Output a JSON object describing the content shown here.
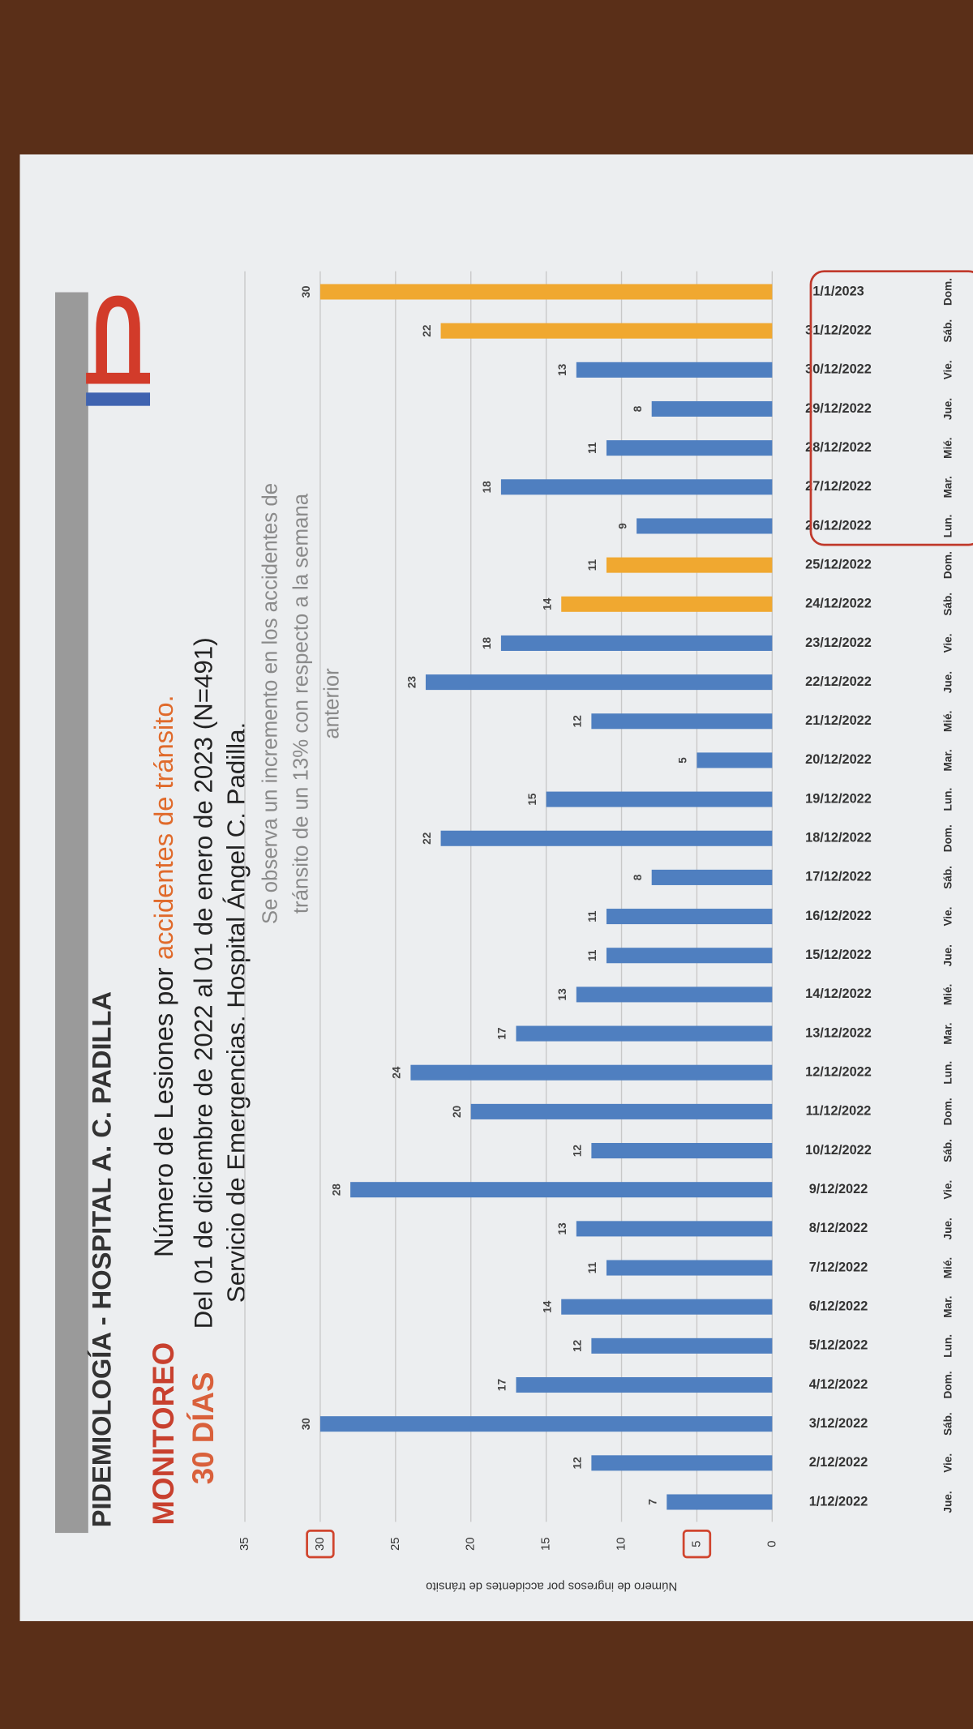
{
  "chart_data": {
    "type": "bar",
    "brand": "PIDEMIOLOGÍA - HOSPITAL A. C. PADILLA",
    "label_monitoring": "MONITOREO",
    "label_days": "30 DÍAS",
    "title_parts": [
      "Número de Lesiones por",
      "accidentes de tránsito."
    ],
    "subtitle": [
      "Del 01 de diciembre de 2022 al 01 de enero de 2023 (N=491)",
      "Servicio de Emergencias. Hospital Ángel C. Padilla."
    ],
    "annotation": [
      "Se observa un incremento en los accidentes de",
      "tránsito de un 13% con respecto a la semana",
      "anterior"
    ],
    "y_label": "Número de ingresos por accidentes de tránsito",
    "categories": [
      "1/12/2022",
      "2/12/2022",
      "3/12/2022",
      "4/12/2022",
      "5/12/2022",
      "6/12/2022",
      "7/12/2022",
      "8/12/2022",
      "9/12/2022",
      "10/12/2022",
      "11/12/2022",
      "12/12/2022",
      "13/12/2022",
      "14/12/2022",
      "15/12/2022",
      "16/12/2022",
      "17/12/2022",
      "18/12/2022",
      "19/12/2022",
      "20/12/2022",
      "21/12/2022",
      "22/12/2022",
      "23/12/2022",
      "24/12/2022",
      "25/12/2022",
      "26/12/2022",
      "27/12/2022",
      "28/12/2022",
      "29/12/2022",
      "30/12/2022",
      "31/12/2022",
      "1/1/2023"
    ],
    "weekdays": [
      "Jue.",
      "Vie.",
      "Sáb.",
      "Dom.",
      "Lun.",
      "Mar.",
      "Mié.",
      "Jue.",
      "Vie.",
      "Sáb.",
      "Dom.",
      "Lun.",
      "Mar.",
      "Mié.",
      "Jue.",
      "Vie.",
      "Sáb.",
      "Dom.",
      "Lun.",
      "Mar.",
      "Mié.",
      "Jue.",
      "Vie.",
      "Sáb.",
      "Dom.",
      "Lun.",
      "Mar.",
      "Mié.",
      "Jue.",
      "Vie.",
      "Sáb.",
      "Dom."
    ],
    "values": [
      7,
      12,
      30,
      17,
      12,
      14,
      11,
      13,
      28,
      12,
      20,
      24,
      17,
      13,
      11,
      11,
      8,
      22,
      15,
      5,
      12,
      23,
      18,
      14,
      11,
      9,
      18,
      11,
      8,
      13,
      22,
      30
    ],
    "colors": [
      "#4f7fc0",
      "#4f7fc0",
      "#4f7fc0",
      "#4f7fc0",
      "#4f7fc0",
      "#4f7fc0",
      "#4f7fc0",
      "#4f7fc0",
      "#4f7fc0",
      "#4f7fc0",
      "#4f7fc0",
      "#4f7fc0",
      "#4f7fc0",
      "#4f7fc0",
      "#4f7fc0",
      "#4f7fc0",
      "#4f7fc0",
      "#4f7fc0",
      "#4f7fc0",
      "#4f7fc0",
      "#4f7fc0",
      "#4f7fc0",
      "#4f7fc0",
      "#f0a830",
      "#f0a830",
      "#4f7fc0",
      "#4f7fc0",
      "#4f7fc0",
      "#4f7fc0",
      "#4f7fc0",
      "#f0a830",
      "#f0a830"
    ],
    "ylim": [
      0,
      35
    ],
    "yticks": [
      0,
      5,
      10,
      15,
      20,
      25,
      30,
      35
    ],
    "grid": true
  }
}
